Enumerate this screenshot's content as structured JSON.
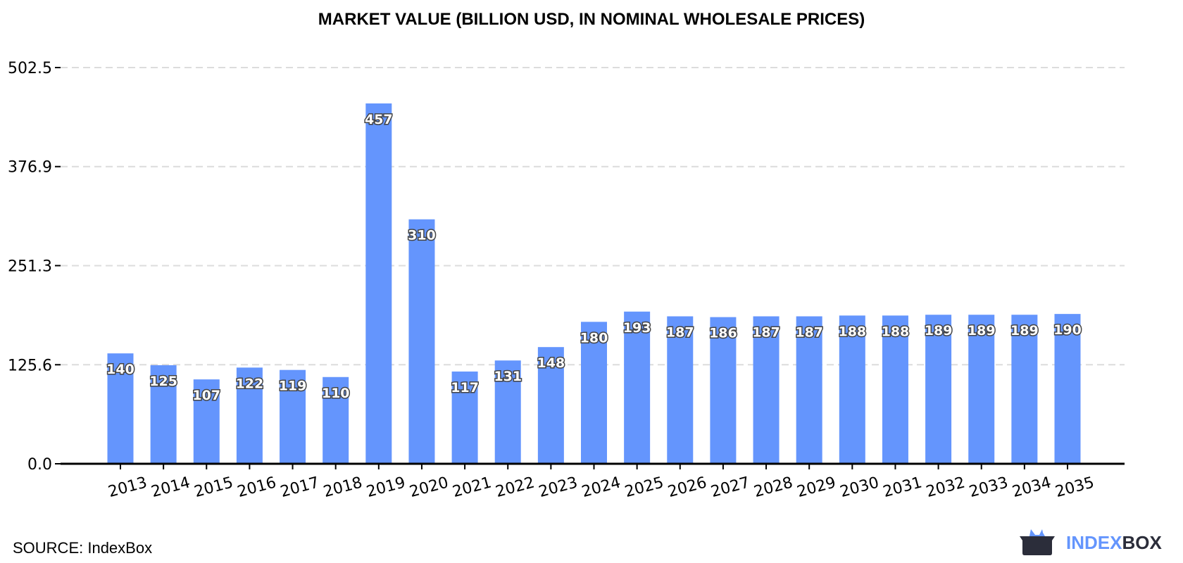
{
  "chart_data": {
    "type": "bar",
    "title": "MARKET VALUE (BILLION USD, IN NOMINAL WHOLESALE PRICES)",
    "xlabel": "",
    "ylabel": "",
    "categories": [
      "2013",
      "2014",
      "2015",
      "2016",
      "2017",
      "2018",
      "2019",
      "2020",
      "2021",
      "2022",
      "2023",
      "2024",
      "2025",
      "2026",
      "2027",
      "2028",
      "2029",
      "2030",
      "2031",
      "2032",
      "2033",
      "2034",
      "2035"
    ],
    "values": [
      140,
      125,
      107,
      122,
      119,
      110,
      457,
      310,
      117,
      131,
      148,
      180,
      193,
      187,
      186,
      187,
      187,
      188,
      188,
      189,
      189,
      189,
      190
    ],
    "yticks": [
      0.0,
      125.6,
      251.3,
      376.9,
      502.5
    ],
    "ytick_labels": [
      "0.0",
      "125.6",
      "251.3",
      "376.9",
      "502.5"
    ],
    "ylim": [
      0,
      502.5
    ],
    "grid": true,
    "bar_color": "#6495fd"
  },
  "source": "SOURCE: IndexBox",
  "logo": {
    "part1": "INDEX",
    "part2": "BOX",
    "color1": "#6495fd",
    "color2": "#2b2d3a"
  }
}
